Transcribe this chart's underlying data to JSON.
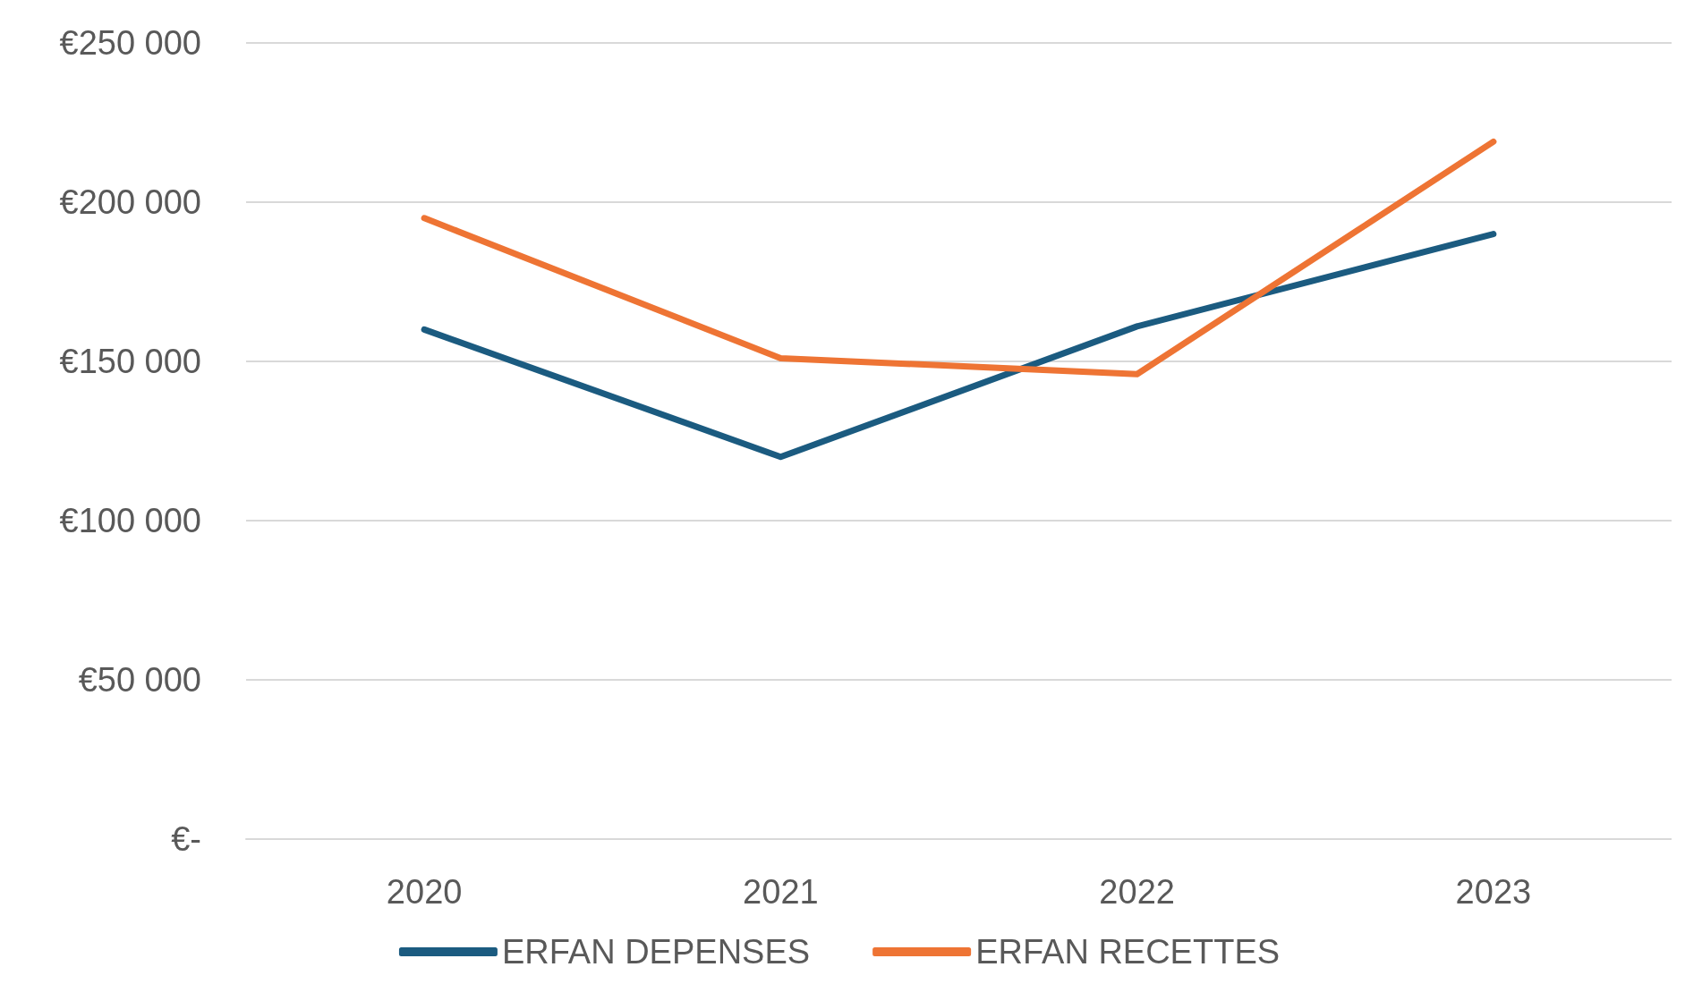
{
  "chart_data": {
    "type": "line",
    "categories": [
      "2020",
      "2021",
      "2022",
      "2023"
    ],
    "series": [
      {
        "name": "ERFAN DEPENSES",
        "color": "#1b5b80",
        "values": [
          160000,
          120000,
          161000,
          190000
        ]
      },
      {
        "name": "ERFAN RECETTES",
        "color": "#ee7434",
        "values": [
          195000,
          151000,
          146000,
          219000
        ]
      }
    ],
    "ylim": [
      0,
      250000
    ],
    "yticks": [
      {
        "value": 0,
        "label": "€-"
      },
      {
        "value": 50000,
        "label": "€50 000"
      },
      {
        "value": 100000,
        "label": "€100 000"
      },
      {
        "value": 150000,
        "label": "€150 000"
      },
      {
        "value": 200000,
        "label": "€200 000"
      },
      {
        "value": 250000,
        "label": "€250 000"
      }
    ],
    "grid": "y",
    "legend": "bottom",
    "marker": "none",
    "line_style": "solid"
  }
}
